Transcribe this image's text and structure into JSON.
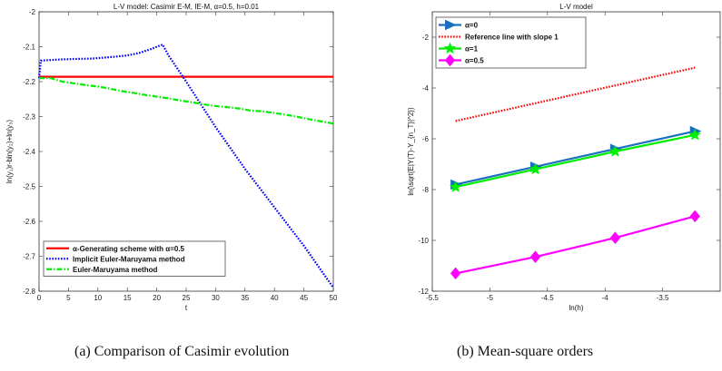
{
  "chart_data": [
    {
      "type": "line",
      "title": "L-V model: Casimir E-M, IE-M, α=0.5, h=0.01",
      "xlabel": "t",
      "ylabel": "ln(y₁)r-bln(y₂)+ln(y₃)",
      "xlim": [
        0,
        50
      ],
      "ylim": [
        -2.8,
        -2
      ],
      "xticks": [
        "0",
        "5",
        "10",
        "15",
        "20",
        "25",
        "30",
        "35",
        "40",
        "45",
        "50"
      ],
      "yticks": [
        "-2",
        "-2.1",
        "-2.2",
        "-2.3",
        "-2.4",
        "-2.5",
        "-2.6",
        "-2.7",
        "-2.8"
      ],
      "legend_position": "bottom-left",
      "series": [
        {
          "name": "α-Generating scheme with  α=0.5",
          "color": "#ff0000",
          "style": "solid",
          "x": [
            0,
            50
          ],
          "y": [
            -2.186,
            -2.186
          ]
        },
        {
          "name": "Implicit Euler-Maruyama method",
          "color": "#0000ff",
          "style": "dotted",
          "x": [
            0,
            0.3,
            1,
            3,
            6,
            9,
            12,
            15,
            17,
            19,
            20,
            21,
            22,
            25,
            30,
            35,
            40,
            45,
            50
          ],
          "y": [
            -2.19,
            -2.14,
            -2.139,
            -2.137,
            -2.135,
            -2.134,
            -2.13,
            -2.125,
            -2.118,
            -2.107,
            -2.1,
            -2.094,
            -2.125,
            -2.2,
            -2.33,
            -2.45,
            -2.56,
            -2.67,
            -2.79
          ]
        },
        {
          "name": "Euler-Maruyama method",
          "color": "#00ee00",
          "style": "dashdot",
          "x": [
            0,
            2,
            4,
            6,
            8,
            10,
            12,
            14,
            16,
            18,
            20,
            22,
            24,
            26,
            28,
            30,
            32,
            34,
            36,
            38,
            40,
            42,
            44,
            46,
            48,
            50
          ],
          "y": [
            -2.19,
            -2.19,
            -2.2,
            -2.205,
            -2.21,
            -2.214,
            -2.22,
            -2.227,
            -2.232,
            -2.238,
            -2.243,
            -2.248,
            -2.254,
            -2.259,
            -2.265,
            -2.27,
            -2.273,
            -2.277,
            -2.283,
            -2.285,
            -2.29,
            -2.295,
            -2.301,
            -2.308,
            -2.314,
            -2.32
          ]
        }
      ]
    },
    {
      "type": "line",
      "title": "L-V model",
      "xlabel": "ln(h)",
      "ylabel": "ln(\\sqrt{E|Y(T)-Y_{n_T}|^2})",
      "xlim": [
        -5.5,
        -3
      ],
      "ylim": [
        -12,
        -1
      ],
      "xticks": [
        "-5.5",
        "-5",
        "-4.5",
        "-4",
        "-3.5"
      ],
      "yticks": [
        "-2",
        "-4",
        "-6",
        "-8",
        "-10",
        "-12"
      ],
      "legend_position": "top-left",
      "series": [
        {
          "name": "α=0",
          "color": "#1a6fbf",
          "style": "solid",
          "marker": "triangle-right",
          "x": [
            -5.298,
            -4.605,
            -3.912,
            -3.219
          ],
          "y": [
            -7.8,
            -7.1,
            -6.4,
            -5.7
          ]
        },
        {
          "name": "Reference line with slope 1",
          "color": "#ff0000",
          "style": "dotted",
          "x": [
            -5.298,
            -3.219
          ],
          "y": [
            -5.3,
            -3.2
          ]
        },
        {
          "name": "α=1",
          "color": "#00ee00",
          "style": "solid",
          "marker": "star",
          "x": [
            -5.298,
            -4.605,
            -3.912,
            -3.219
          ],
          "y": [
            -7.9,
            -7.2,
            -6.5,
            -5.85
          ]
        },
        {
          "name": "α=0.5",
          "color": "#ff00ff",
          "style": "solid",
          "marker": "diamond",
          "x": [
            -5.298,
            -4.605,
            -3.912,
            -3.219
          ],
          "y": [
            -11.3,
            -10.65,
            -9.9,
            -9.05
          ]
        }
      ]
    }
  ],
  "captions": {
    "left": "(a)  Comparison of Casimir evolution",
    "right": "(b)  Mean-square orders"
  }
}
